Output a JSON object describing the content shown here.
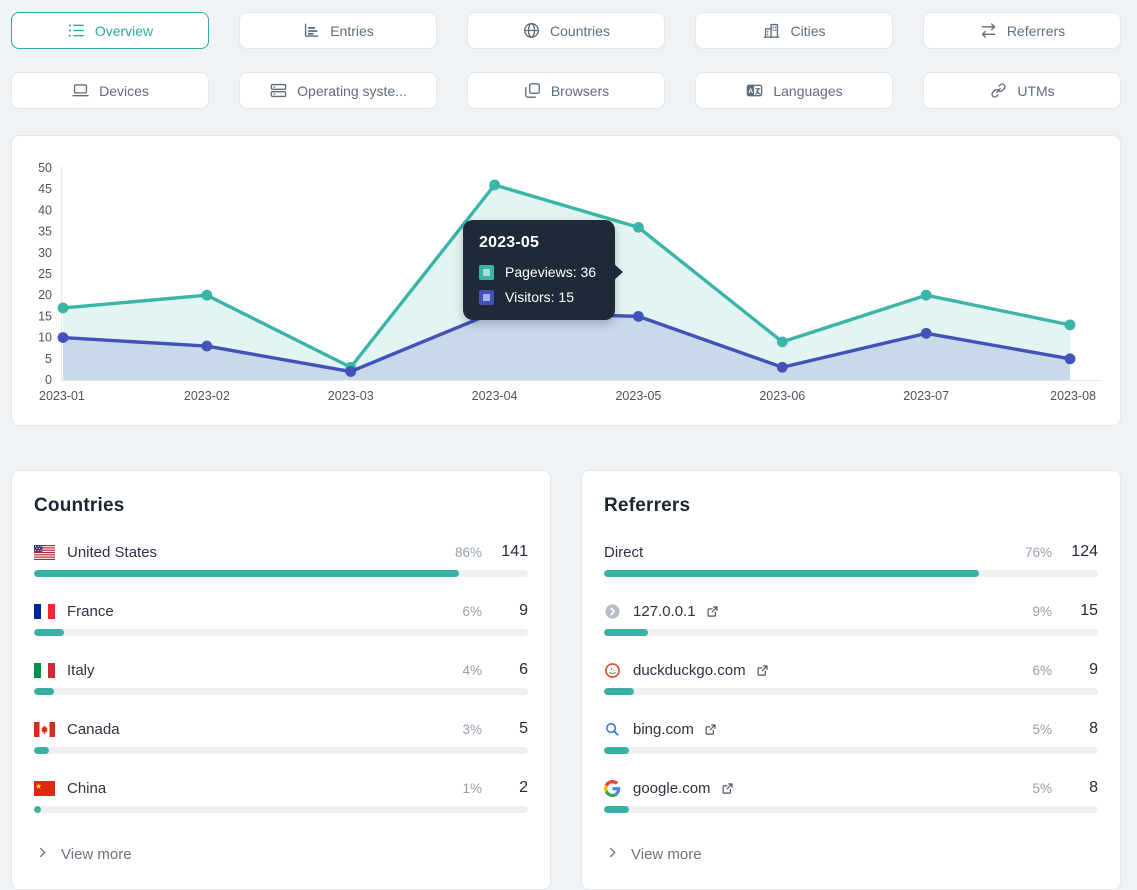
{
  "colors": {
    "accent_teal": "#2caba0",
    "bar_fill": "#38b0a4",
    "pageviews": "#3bb5a7",
    "visitors": "#4152b8",
    "tooltip_bg": "#1f2a38"
  },
  "tabs": [
    {
      "label": "Overview",
      "icon": "list-bullet-icon",
      "active": true
    },
    {
      "label": "Entries",
      "icon": "bar-chart-icon",
      "active": false
    },
    {
      "label": "Countries",
      "icon": "globe-icon",
      "active": false
    },
    {
      "label": "Cities",
      "icon": "buildings-icon",
      "active": false
    },
    {
      "label": "Referrers",
      "icon": "shuffle-icon",
      "active": false
    },
    {
      "label": "Devices",
      "icon": "laptop-icon",
      "active": false
    },
    {
      "label": "Operating syste...",
      "icon": "server-stack-icon",
      "active": false
    },
    {
      "label": "Browsers",
      "icon": "windows-icon",
      "active": false
    },
    {
      "label": "Languages",
      "icon": "language-icon",
      "active": false
    },
    {
      "label": "UTMs",
      "icon": "link-icon",
      "active": false
    }
  ],
  "chart_data": {
    "type": "line",
    "x": [
      "2023-01",
      "2023-02",
      "2023-03",
      "2023-04",
      "2023-05",
      "2023-06",
      "2023-07",
      "2023-08"
    ],
    "series": [
      {
        "name": "Pageviews",
        "color": "#3bb5a7",
        "fill": "rgba(59,181,167,0.14)",
        "values": [
          17,
          20,
          3,
          46,
          36,
          9,
          20,
          13
        ]
      },
      {
        "name": "Visitors",
        "color": "#4152b8",
        "fill": "rgba(65,82,184,0.16)",
        "values": [
          10,
          8,
          2,
          16,
          15,
          3,
          11,
          5
        ]
      }
    ],
    "ylim": [
      0,
      50
    ],
    "yticks": [
      0,
      5,
      10,
      15,
      20,
      25,
      30,
      35,
      40,
      45,
      50
    ],
    "grid": false,
    "legend_position": "none",
    "tooltip": {
      "title": "2023-05",
      "rows": [
        {
          "series": "Pageviews",
          "text": "Pageviews: 36",
          "swatch": "#3bb5a7",
          "swatch_inner": "#a8ded7"
        },
        {
          "series": "Visitors",
          "text": "Visitors: 15",
          "swatch": "#4152b8",
          "swatch_inner": "#a9b0e6"
        }
      ]
    }
  },
  "countries": {
    "title": "Countries",
    "view_more": "View more",
    "rows": [
      {
        "flag": "us",
        "label": "United States",
        "percent": "86%",
        "count": "141",
        "value": 86
      },
      {
        "flag": "fr",
        "label": "France",
        "percent": "6%",
        "count": "9",
        "value": 6
      },
      {
        "flag": "it",
        "label": "Italy",
        "percent": "4%",
        "count": "6",
        "value": 4
      },
      {
        "flag": "ca",
        "label": "Canada",
        "percent": "3%",
        "count": "5",
        "value": 3
      },
      {
        "flag": "cn",
        "label": "China",
        "percent": "1%",
        "count": "2",
        "value": 1
      }
    ]
  },
  "referrers": {
    "title": "Referrers",
    "view_more": "View more",
    "rows": [
      {
        "icon": "none",
        "label": "Direct",
        "external": false,
        "percent": "76%",
        "count": "124",
        "value": 76
      },
      {
        "icon": "default-favicon",
        "label": "127.0.0.1",
        "external": true,
        "percent": "9%",
        "count": "15",
        "value": 9
      },
      {
        "icon": "duckduckgo-favicon",
        "label": "duckduckgo.com",
        "external": true,
        "percent": "6%",
        "count": "9",
        "value": 6
      },
      {
        "icon": "bing-favicon",
        "label": "bing.com",
        "external": true,
        "percent": "5%",
        "count": "8",
        "value": 5
      },
      {
        "icon": "google-favicon",
        "label": "google.com",
        "external": true,
        "percent": "5%",
        "count": "8",
        "value": 5
      }
    ]
  }
}
